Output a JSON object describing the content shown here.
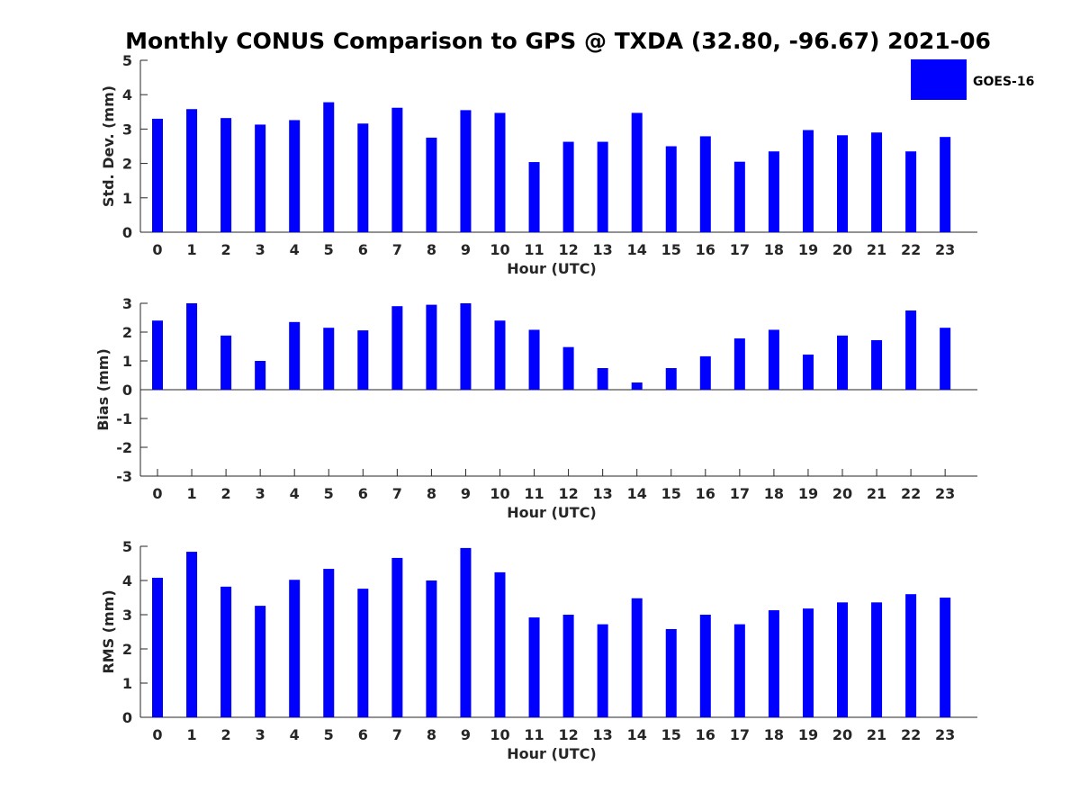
{
  "title": "Monthly CONUS Comparison to GPS @ TXDA (32.80, -96.67) 2021-06",
  "legend": {
    "label": "GOES-16",
    "color": "#0000ff",
    "placement": "top-right"
  },
  "chart_data": [
    {
      "type": "bar",
      "xlabel": "Hour (UTC)",
      "ylabel": "Std. Dev. (mm)",
      "ylim": [
        0,
        5
      ],
      "yticks": [
        "0",
        "1",
        "2",
        "3",
        "4",
        "5"
      ],
      "categories": [
        "0",
        "1",
        "2",
        "3",
        "4",
        "5",
        "6",
        "7",
        "8",
        "9",
        "10",
        "11",
        "12",
        "13",
        "14",
        "15",
        "16",
        "17",
        "18",
        "19",
        "20",
        "21",
        "22",
        "23"
      ],
      "series": [
        {
          "name": "GOES-16",
          "color": "#0000ff",
          "values": [
            3.3,
            3.58,
            3.32,
            3.13,
            3.26,
            3.78,
            3.16,
            3.62,
            2.75,
            3.55,
            3.47,
            2.04,
            2.63,
            2.63,
            3.47,
            2.5,
            2.79,
            2.05,
            2.35,
            2.97,
            2.82,
            2.9,
            2.35,
            2.77
          ]
        }
      ]
    },
    {
      "type": "bar",
      "xlabel": "Hour (UTC)",
      "ylabel": "Bias (mm)",
      "ylim": [
        -3,
        3
      ],
      "yticks": [
        "-3",
        "-2",
        "-1",
        "0",
        "1",
        "2",
        "3"
      ],
      "categories": [
        "0",
        "1",
        "2",
        "3",
        "4",
        "5",
        "6",
        "7",
        "8",
        "9",
        "10",
        "11",
        "12",
        "13",
        "14",
        "15",
        "16",
        "17",
        "18",
        "19",
        "20",
        "21",
        "22",
        "23"
      ],
      "series": [
        {
          "name": "GOES-16",
          "color": "#0000ff",
          "values": [
            2.4,
            3.0,
            1.88,
            1.0,
            2.35,
            2.15,
            2.06,
            2.9,
            2.95,
            3.0,
            2.4,
            2.08,
            1.48,
            0.75,
            0.25,
            0.75,
            1.16,
            1.78,
            2.08,
            1.22,
            1.88,
            1.72,
            2.75,
            2.15
          ]
        }
      ]
    },
    {
      "type": "bar",
      "xlabel": "Hour (UTC)",
      "ylabel": "RMS (mm)",
      "ylim": [
        0,
        5
      ],
      "yticks": [
        "0",
        "1",
        "2",
        "3",
        "4",
        "5"
      ],
      "categories": [
        "0",
        "1",
        "2",
        "3",
        "4",
        "5",
        "6",
        "7",
        "8",
        "9",
        "10",
        "11",
        "12",
        "13",
        "14",
        "15",
        "16",
        "17",
        "18",
        "19",
        "20",
        "21",
        "22",
        "23"
      ],
      "series": [
        {
          "name": "GOES-16",
          "color": "#0000ff",
          "values": [
            4.08,
            4.84,
            3.82,
            3.26,
            4.02,
            4.34,
            3.76,
            4.66,
            4.0,
            4.95,
            4.24,
            2.92,
            3.0,
            2.72,
            3.48,
            2.58,
            3.0,
            2.72,
            3.13,
            3.18,
            3.36,
            3.36,
            3.6,
            3.5
          ]
        }
      ]
    }
  ]
}
